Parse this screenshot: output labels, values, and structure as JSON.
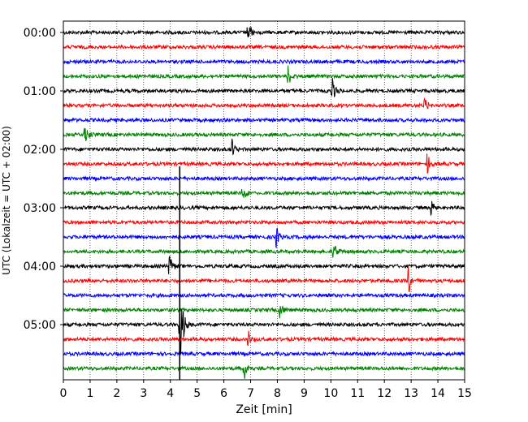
{
  "chart_data": {
    "type": "line",
    "title": "",
    "xlabel": "Zeit  [min]",
    "ylabel": "UTC (Lokalzeit = UTC + 02:00)",
    "xlim": [
      0,
      15
    ],
    "x_ticks": [
      0,
      1,
      2,
      3,
      4,
      5,
      6,
      7,
      8,
      9,
      10,
      11,
      12,
      13,
      14,
      15
    ],
    "y_tick_labels": [
      "00:00",
      "01:00",
      "02:00",
      "03:00",
      "04:00",
      "05:00"
    ],
    "trace_interval_min": 15,
    "trace_colors": [
      "#000000",
      "#ff0000",
      "#0000ff",
      "#008000"
    ],
    "grid": "vertical dotted at every minute",
    "traces": [
      {
        "start": "00:00",
        "events": [
          {
            "t": 6.9,
            "amp": 1.0
          }
        ]
      },
      {
        "start": "00:15",
        "events": []
      },
      {
        "start": "00:30",
        "events": []
      },
      {
        "start": "00:45",
        "events": [
          {
            "t": 8.4,
            "amp": 0.9
          }
        ]
      },
      {
        "start": "01:00",
        "events": [
          {
            "t": 10.05,
            "amp": 1.0
          }
        ]
      },
      {
        "start": "01:15",
        "events": [
          {
            "t": 13.5,
            "amp": 0.9
          }
        ]
      },
      {
        "start": "01:30",
        "events": []
      },
      {
        "start": "01:45",
        "events": [
          {
            "t": 0.8,
            "amp": 0.9
          }
        ]
      },
      {
        "start": "02:00",
        "events": [
          {
            "t": 6.3,
            "amp": 0.9
          }
        ]
      },
      {
        "start": "02:15",
        "events": [
          {
            "t": 13.6,
            "amp": 0.9
          }
        ]
      },
      {
        "start": "02:30",
        "events": []
      },
      {
        "start": "02:45",
        "events": [
          {
            "t": 6.7,
            "amp": 0.9
          }
        ]
      },
      {
        "start": "03:00",
        "events": [
          {
            "t": 13.75,
            "amp": 0.9
          }
        ]
      },
      {
        "start": "03:15",
        "events": []
      },
      {
        "start": "03:30",
        "events": [
          {
            "t": 7.95,
            "amp": 1.0
          }
        ]
      },
      {
        "start": "03:45",
        "events": [
          {
            "t": 10.1,
            "amp": 0.8
          }
        ]
      },
      {
        "start": "04:00",
        "events": [
          {
            "t": 3.95,
            "amp": 1.0
          }
        ]
      },
      {
        "start": "04:15",
        "events": [
          {
            "t": 12.9,
            "amp": 1.2
          }
        ]
      },
      {
        "start": "04:30",
        "events": []
      },
      {
        "start": "04:45",
        "events": [
          {
            "t": 8.1,
            "amp": 0.9
          }
        ]
      },
      {
        "start": "05:00",
        "events": [
          {
            "t": 4.35,
            "amp": 3.5
          }
        ]
      },
      {
        "start": "05:15",
        "events": [
          {
            "t": 6.9,
            "amp": 0.9
          }
        ]
      },
      {
        "start": "05:30",
        "events": []
      },
      {
        "start": "05:45",
        "events": [
          {
            "t": 6.75,
            "amp": 1.0
          }
        ]
      }
    ]
  }
}
